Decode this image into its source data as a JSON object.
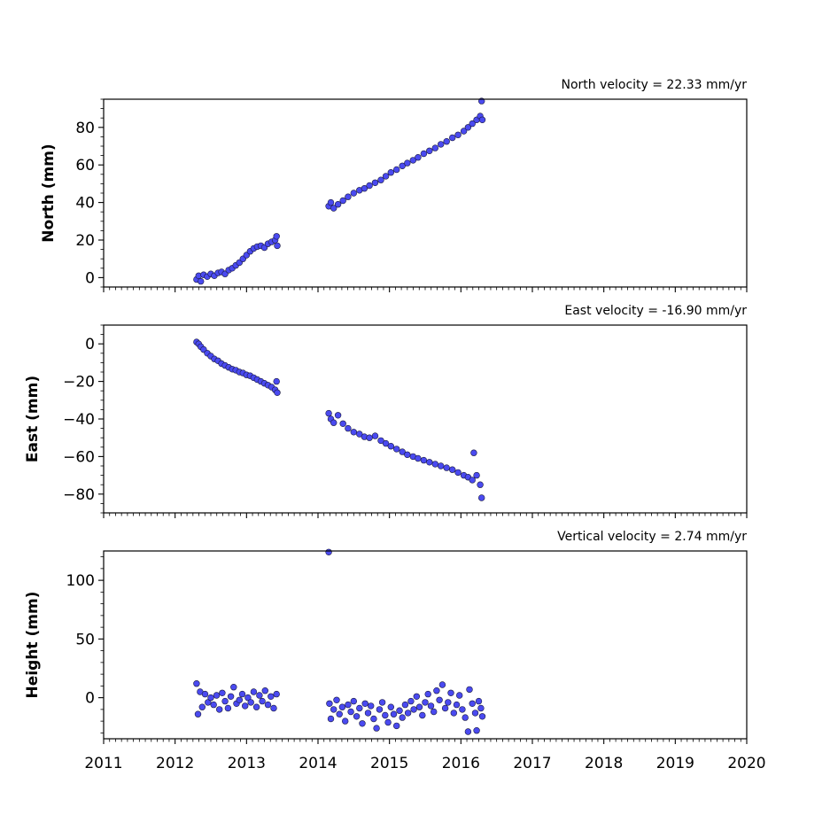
{
  "chart_data": [
    {
      "type": "scatter",
      "title": "North velocity = 22.33 mm/yr",
      "xlabel": "",
      "ylabel": "North (mm)",
      "xlim": [
        2011,
        2020
      ],
      "ylim": [
        -5,
        95
      ],
      "yticks": [
        0,
        20,
        40,
        60,
        80
      ],
      "xticks": [
        2011,
        2012,
        2013,
        2014,
        2015,
        2016,
        2017,
        2018,
        2019,
        2020
      ],
      "x_tick_labels_shown": false,
      "color": "#4a4af0",
      "points": [
        [
          2012.3,
          -1.0
        ],
        [
          2012.33,
          1.0
        ],
        [
          2012.36,
          -2.0
        ],
        [
          2012.4,
          1.5
        ],
        [
          2012.45,
          0.5
        ],
        [
          2012.5,
          2.0
        ],
        [
          2012.55,
          1.0
        ],
        [
          2012.6,
          2.5
        ],
        [
          2012.65,
          3.0
        ],
        [
          2012.7,
          2.0
        ],
        [
          2012.75,
          4.0
        ],
        [
          2012.8,
          5.0
        ],
        [
          2012.85,
          6.5
        ],
        [
          2012.9,
          8.0
        ],
        [
          2012.95,
          10.0
        ],
        [
          2013.0,
          12.0
        ],
        [
          2013.05,
          14.0
        ],
        [
          2013.1,
          15.5
        ],
        [
          2013.15,
          16.5
        ],
        [
          2013.2,
          17.0
        ],
        [
          2013.25,
          16.0
        ],
        [
          2013.3,
          18.0
        ],
        [
          2013.35,
          19.0
        ],
        [
          2013.4,
          20.0
        ],
        [
          2013.43,
          17.0
        ],
        [
          2013.42,
          22.0
        ],
        [
          2014.15,
          38.0
        ],
        [
          2014.18,
          40.0
        ],
        [
          2014.22,
          37.0
        ],
        [
          2014.28,
          39.0
        ],
        [
          2014.35,
          41.0
        ],
        [
          2014.42,
          43.0
        ],
        [
          2014.5,
          45.0
        ],
        [
          2014.58,
          46.5
        ],
        [
          2014.65,
          47.5
        ],
        [
          2014.72,
          49.0
        ],
        [
          2014.8,
          50.5
        ],
        [
          2014.88,
          52.0
        ],
        [
          2014.95,
          54.0
        ],
        [
          2015.02,
          56.0
        ],
        [
          2015.1,
          57.5
        ],
        [
          2015.18,
          59.5
        ],
        [
          2015.25,
          61.0
        ],
        [
          2015.33,
          62.5
        ],
        [
          2015.4,
          64.0
        ],
        [
          2015.48,
          66.0
        ],
        [
          2015.56,
          67.5
        ],
        [
          2015.64,
          69.0
        ],
        [
          2015.72,
          71.0
        ],
        [
          2015.8,
          72.5
        ],
        [
          2015.88,
          74.5
        ],
        [
          2015.96,
          76.0
        ],
        [
          2016.04,
          78.0
        ],
        [
          2016.1,
          80.0
        ],
        [
          2016.16,
          82.0
        ],
        [
          2016.22,
          84.0
        ],
        [
          2016.27,
          86.0
        ],
        [
          2016.3,
          84.0
        ],
        [
          2016.29,
          94.0
        ]
      ]
    },
    {
      "type": "scatter",
      "title": "East velocity = -16.90 mm/yr",
      "xlabel": "",
      "ylabel": "East (mm)",
      "xlim": [
        2011,
        2020
      ],
      "ylim": [
        -90,
        10
      ],
      "yticks": [
        0,
        -20,
        -40,
        -60,
        -80
      ],
      "xticks": [
        2011,
        2012,
        2013,
        2014,
        2015,
        2016,
        2017,
        2018,
        2019,
        2020
      ],
      "x_tick_labels_shown": false,
      "color": "#4a4af0",
      "points": [
        [
          2012.3,
          1.0
        ],
        [
          2012.33,
          0.0
        ],
        [
          2012.36,
          -1.5
        ],
        [
          2012.4,
          -3.0
        ],
        [
          2012.45,
          -5.0
        ],
        [
          2012.5,
          -6.5
        ],
        [
          2012.55,
          -8.0
        ],
        [
          2012.6,
          -9.0
        ],
        [
          2012.65,
          -10.5
        ],
        [
          2012.7,
          -11.5
        ],
        [
          2012.75,
          -12.5
        ],
        [
          2012.8,
          -13.5
        ],
        [
          2012.85,
          -14.0
        ],
        [
          2012.9,
          -15.0
        ],
        [
          2012.95,
          -15.5
        ],
        [
          2013.0,
          -16.5
        ],
        [
          2013.05,
          -17.0
        ],
        [
          2013.1,
          -18.0
        ],
        [
          2013.15,
          -19.0
        ],
        [
          2013.2,
          -20.0
        ],
        [
          2013.25,
          -21.0
        ],
        [
          2013.3,
          -22.0
        ],
        [
          2013.35,
          -23.0
        ],
        [
          2013.4,
          -24.5
        ],
        [
          2013.43,
          -26.0
        ],
        [
          2013.42,
          -20.0
        ],
        [
          2014.15,
          -37.0
        ],
        [
          2014.18,
          -40.0
        ],
        [
          2014.22,
          -42.0
        ],
        [
          2014.28,
          -38.0
        ],
        [
          2014.35,
          -42.5
        ],
        [
          2014.42,
          -45.0
        ],
        [
          2014.5,
          -47.0
        ],
        [
          2014.58,
          -48.0
        ],
        [
          2014.65,
          -49.5
        ],
        [
          2014.72,
          -50.0
        ],
        [
          2014.8,
          -49.0
        ],
        [
          2014.88,
          -51.5
        ],
        [
          2014.95,
          -53.0
        ],
        [
          2015.02,
          -54.5
        ],
        [
          2015.1,
          -56.0
        ],
        [
          2015.18,
          -57.5
        ],
        [
          2015.25,
          -59.0
        ],
        [
          2015.33,
          -60.0
        ],
        [
          2015.4,
          -61.0
        ],
        [
          2015.48,
          -62.0
        ],
        [
          2015.56,
          -63.0
        ],
        [
          2015.64,
          -64.0
        ],
        [
          2015.72,
          -65.0
        ],
        [
          2015.8,
          -66.0
        ],
        [
          2015.88,
          -67.0
        ],
        [
          2015.96,
          -68.5
        ],
        [
          2016.04,
          -70.0
        ],
        [
          2016.1,
          -71.0
        ],
        [
          2016.16,
          -72.5
        ],
        [
          2016.18,
          -58.0
        ],
        [
          2016.22,
          -70.0
        ],
        [
          2016.27,
          -75.0
        ],
        [
          2016.29,
          -82.0
        ]
      ]
    },
    {
      "type": "scatter",
      "title": "Vertical velocity = 2.74 mm/yr",
      "xlabel": "",
      "ylabel": "Height (mm)",
      "xlim": [
        2011,
        2020
      ],
      "ylim": [
        -35,
        125
      ],
      "yticks": [
        0,
        50,
        100
      ],
      "xticks": [
        2011,
        2012,
        2013,
        2014,
        2015,
        2016,
        2017,
        2018,
        2019,
        2020
      ],
      "x_tick_labels_shown": true,
      "color": "#4a4af0",
      "points": [
        [
          2012.3,
          12.0
        ],
        [
          2012.32,
          -14.0
        ],
        [
          2012.35,
          5.0
        ],
        [
          2012.38,
          -8.0
        ],
        [
          2012.42,
          3.0
        ],
        [
          2012.46,
          -4.0
        ],
        [
          2012.5,
          0.0
        ],
        [
          2012.54,
          -6.0
        ],
        [
          2012.58,
          2.0
        ],
        [
          2012.62,
          -10.0
        ],
        [
          2012.66,
          4.0
        ],
        [
          2012.7,
          -3.0
        ],
        [
          2012.74,
          -9.0
        ],
        [
          2012.78,
          1.0
        ],
        [
          2012.82,
          9.0
        ],
        [
          2012.86,
          -5.0
        ],
        [
          2012.9,
          -2.0
        ],
        [
          2012.94,
          3.0
        ],
        [
          2012.98,
          -7.0
        ],
        [
          2013.02,
          0.0
        ],
        [
          2013.06,
          -4.0
        ],
        [
          2013.1,
          5.0
        ],
        [
          2013.14,
          -8.0
        ],
        [
          2013.18,
          2.0
        ],
        [
          2013.22,
          -3.0
        ],
        [
          2013.26,
          6.0
        ],
        [
          2013.3,
          -6.0
        ],
        [
          2013.34,
          1.0
        ],
        [
          2013.38,
          -9.0
        ],
        [
          2013.42,
          3.0
        ],
        [
          2014.15,
          124.0
        ],
        [
          2014.16,
          -5.0
        ],
        [
          2014.18,
          -18.0
        ],
        [
          2014.22,
          -10.0
        ],
        [
          2014.26,
          -2.0
        ],
        [
          2014.3,
          -14.0
        ],
        [
          2014.34,
          -8.0
        ],
        [
          2014.38,
          -20.0
        ],
        [
          2014.42,
          -6.0
        ],
        [
          2014.46,
          -12.0
        ],
        [
          2014.5,
          -3.0
        ],
        [
          2014.54,
          -16.0
        ],
        [
          2014.58,
          -9.0
        ],
        [
          2014.62,
          -22.0
        ],
        [
          2014.66,
          -5.0
        ],
        [
          2014.7,
          -13.0
        ],
        [
          2014.74,
          -7.0
        ],
        [
          2014.78,
          -18.0
        ],
        [
          2014.82,
          -26.0
        ],
        [
          2014.86,
          -10.0
        ],
        [
          2014.9,
          -4.0
        ],
        [
          2014.94,
          -15.0
        ],
        [
          2014.98,
          -21.0
        ],
        [
          2015.02,
          -8.0
        ],
        [
          2015.06,
          -14.0
        ],
        [
          2015.1,
          -24.0
        ],
        [
          2015.14,
          -11.0
        ],
        [
          2015.18,
          -17.0
        ],
        [
          2015.22,
          -6.0
        ],
        [
          2015.26,
          -13.0
        ],
        [
          2015.3,
          -3.0
        ],
        [
          2015.34,
          -10.0
        ],
        [
          2015.38,
          1.0
        ],
        [
          2015.42,
          -8.0
        ],
        [
          2015.46,
          -15.0
        ],
        [
          2015.5,
          -4.0
        ],
        [
          2015.54,
          3.0
        ],
        [
          2015.58,
          -7.0
        ],
        [
          2015.62,
          -12.0
        ],
        [
          2015.66,
          6.0
        ],
        [
          2015.7,
          -2.0
        ],
        [
          2015.74,
          11.0
        ],
        [
          2015.78,
          -9.0
        ],
        [
          2015.82,
          -4.0
        ],
        [
          2015.86,
          4.0
        ],
        [
          2015.9,
          -13.0
        ],
        [
          2015.94,
          -6.0
        ],
        [
          2015.98,
          2.0
        ],
        [
          2016.02,
          -10.0
        ],
        [
          2016.06,
          -17.0
        ],
        [
          2016.1,
          -29.0
        ],
        [
          2016.12,
          7.0
        ],
        [
          2016.16,
          -5.0
        ],
        [
          2016.2,
          -13.0
        ],
        [
          2016.22,
          -28.0
        ],
        [
          2016.25,
          -3.0
        ],
        [
          2016.28,
          -9.0
        ],
        [
          2016.3,
          -16.0
        ]
      ]
    }
  ]
}
